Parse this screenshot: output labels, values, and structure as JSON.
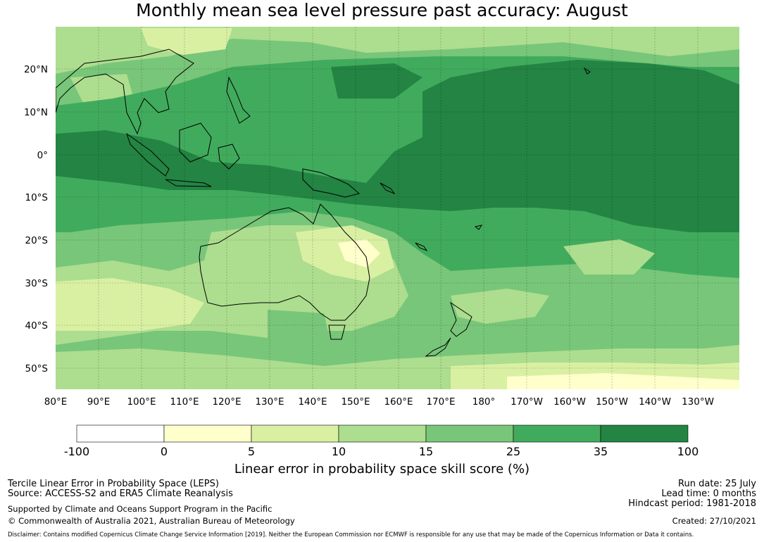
{
  "title": "Monthly mean sea level pressure past accuracy: August",
  "map": {
    "lat_labels": [
      "20°N",
      "10°N",
      "0°",
      "10°S",
      "20°S",
      "30°S",
      "40°S",
      "50°S"
    ],
    "lon_labels": [
      "80°E",
      "90°E",
      "100°E",
      "110°E",
      "120°E",
      "130°E",
      "140°E",
      "150°E",
      "160°E",
      "170°E",
      "180°",
      "170°W",
      "160°W",
      "150°W",
      "140°W",
      "130°W"
    ],
    "lon_range": [
      "80°E",
      "-120° (120°W)"
    ],
    "lat_range": [
      "55°S",
      "30°N"
    ],
    "gridlines": "dashed"
  },
  "colorbar": {
    "title": "Linear error in probability space skill score (%)",
    "boundaries": [
      "-100",
      "0",
      "5",
      "10",
      "15",
      "25",
      "35",
      "100"
    ],
    "colors": [
      "#ffffff",
      "#ffffcc",
      "#d9f0a3",
      "#addd8e",
      "#78c679",
      "#41ab5d",
      "#238443"
    ]
  },
  "footer": {
    "line1": "Tercile Linear Error in Probability Space (LEPS)",
    "line2": "Source: ACCESS-S2 and ERA5 Climate Reanalysis",
    "support": "Supported by Climate and Oceans Support Program in the Pacific",
    "copyright": "© Commonwealth of Australia 2021, Australian Bureau of Meteorology",
    "run_date": "Run date: 25 July",
    "lead_time": "Lead time: 0 months",
    "hindcast": "Hindcast period: 1981-2018",
    "created": "Created: 27/10/2021",
    "disclaimer": "Disclaimer: Contains modified Copernicus Climate Change Service Information [2019]. Neither the European Commission nor ECMWF is responsible for any use that may be made of the Copernicus Information or Data it contains."
  }
}
